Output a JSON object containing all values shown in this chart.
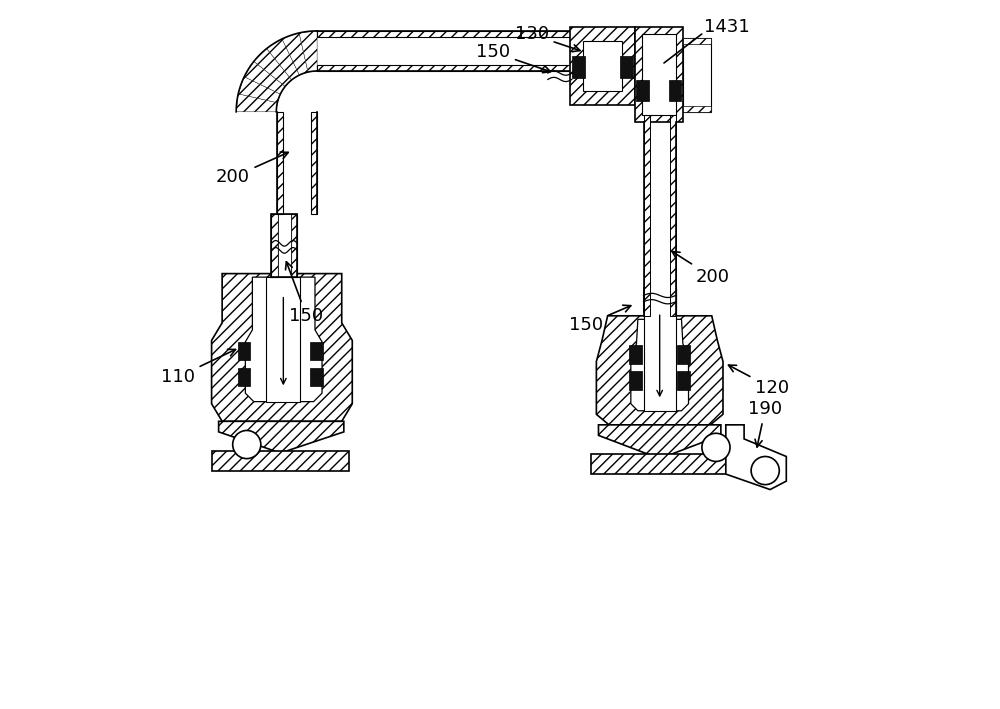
{
  "fig_width": 10.0,
  "fig_height": 7.09,
  "bg_color": "#ffffff",
  "line_color": "#000000"
}
